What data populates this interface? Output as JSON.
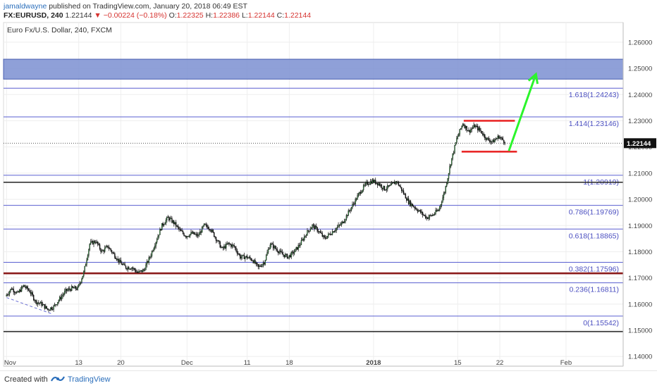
{
  "header": {
    "author": "jamaldwayne",
    "published_text": "published on TradingView.com, January 20, 2018 06:49 EST",
    "symbol": "FX:EURUSD, 240",
    "last": "1.22144",
    "change_arrow": "▼",
    "change": "−0.00224 (−0.18%)",
    "o_label": "O:",
    "o_value": "1.22325",
    "h_label": "H:",
    "h_value": "1.22386",
    "l_label": "L:",
    "l_value": "1.22144",
    "c_label": "C:",
    "c_value": "1.22144"
  },
  "footer": {
    "created_label": "Created with",
    "brand": "TradingView"
  },
  "chart_data": {
    "type": "candlestick",
    "title": "Euro Fx/U.S. Dollar, 240, FXCM",
    "y_ticks": [
      "1.26000",
      "1.25000",
      "1.24000",
      "1.23000",
      "1.22000",
      "1.21000",
      "1.20000",
      "1.19000",
      "1.18000",
      "1.17000",
      "1.16000",
      "1.15000",
      "1.14000"
    ],
    "y_tick_values": [
      1.26,
      1.25,
      1.24,
      1.23,
      1.22,
      1.21,
      1.2,
      1.19,
      1.18,
      1.17,
      1.16,
      1.15,
      1.14
    ],
    "ylim": [
      1.1363,
      1.2675
    ],
    "x_ticks": [
      "Nov",
      "13",
      "20",
      "Dec",
      "11",
      "18",
      "2018",
      "15",
      "22",
      "Feb"
    ],
    "x_tick_days": [
      0,
      12,
      19,
      30,
      40,
      47,
      61,
      75,
      82,
      93
    ],
    "xlim": [
      -0.5,
      102.5
    ],
    "last_price_label": "1.22144",
    "last_price": 1.22144,
    "fib_levels": [
      {
        "label": "1.618(1.24243)",
        "value": 1.24243
      },
      {
        "label": "1.414(1.23146)",
        "value": 1.23146
      },
      {
        "label": "1(1.20919)",
        "value": 1.20919
      },
      {
        "label": "0.786(1.19769)",
        "value": 1.19769
      },
      {
        "label": "0.618(1.18865)",
        "value": 1.18865
      },
      {
        "label": "0.382(1.17596)",
        "value": 1.17596
      },
      {
        "label": "0.236(1.16811)",
        "value": 1.16811
      },
      {
        "label": "0(1.15542)",
        "value": 1.15542
      }
    ],
    "black_lines": [
      1.2065,
      1.1495
    ],
    "red_band": [
      1.1714,
      1.1721
    ],
    "target_zone": [
      1.2459,
      1.2535
    ],
    "red_rect": {
      "top": 1.23,
      "bottom": 1.2182,
      "start_day": 76,
      "end_day": 84.5
    },
    "green_arrow": {
      "from_day": 83.5,
      "from_value": 1.2185,
      "to_day": 88,
      "to_value": 1.2478
    },
    "dashed_trend": {
      "from_day": 0,
      "from_value": 1.1625,
      "to_day": 7.5,
      "to_value": 1.1563
    },
    "price_path": [
      [
        0,
        1.163
      ],
      [
        1,
        1.166
      ],
      [
        2,
        1.164
      ],
      [
        3,
        1.167
      ],
      [
        4,
        1.165
      ],
      [
        5,
        1.161
      ],
      [
        6,
        1.16
      ],
      [
        7,
        1.158
      ],
      [
        8,
        1.159
      ],
      [
        9,
        1.162
      ],
      [
        10,
        1.165
      ],
      [
        11,
        1.166
      ],
      [
        12,
        1.166
      ],
      [
        13,
        1.172
      ],
      [
        14,
        1.183
      ],
      [
        15,
        1.184
      ],
      [
        16,
        1.18
      ],
      [
        17,
        1.182
      ],
      [
        18,
        1.179
      ],
      [
        19,
        1.176
      ],
      [
        20,
        1.174
      ],
      [
        21,
        1.174
      ],
      [
        22,
        1.172
      ],
      [
        23,
        1.173
      ],
      [
        24,
        1.178
      ],
      [
        25,
        1.184
      ],
      [
        26,
        1.19
      ],
      [
        27,
        1.193
      ],
      [
        28,
        1.191
      ],
      [
        29,
        1.188
      ],
      [
        30,
        1.186
      ],
      [
        31,
        1.187
      ],
      [
        32,
        1.186
      ],
      [
        33,
        1.19
      ],
      [
        34,
        1.189
      ],
      [
        35,
        1.185
      ],
      [
        36,
        1.181
      ],
      [
        37,
        1.183
      ],
      [
        38,
        1.182
      ],
      [
        39,
        1.178
      ],
      [
        40,
        1.178
      ],
      [
        41,
        1.177
      ],
      [
        42,
        1.174
      ],
      [
        43,
        1.176
      ],
      [
        44,
        1.183
      ],
      [
        45,
        1.181
      ],
      [
        46,
        1.179
      ],
      [
        47,
        1.178
      ],
      [
        48,
        1.18
      ],
      [
        49,
        1.183
      ],
      [
        50,
        1.187
      ],
      [
        51,
        1.19
      ],
      [
        52,
        1.188
      ],
      [
        53,
        1.185
      ],
      [
        54,
        1.187
      ],
      [
        55,
        1.189
      ],
      [
        56,
        1.191
      ],
      [
        57,
        1.195
      ],
      [
        58,
        1.199
      ],
      [
        59,
        1.203
      ],
      [
        60,
        1.206
      ],
      [
        61,
        1.207
      ],
      [
        62,
        1.206
      ],
      [
        63,
        1.204
      ],
      [
        64,
        1.205
      ],
      [
        65,
        1.207
      ],
      [
        66,
        1.203
      ],
      [
        67,
        1.199
      ],
      [
        68,
        1.197
      ],
      [
        69,
        1.195
      ],
      [
        70,
        1.193
      ],
      [
        71,
        1.194
      ],
      [
        72,
        1.196
      ],
      [
        73,
        1.203
      ],
      [
        74,
        1.214
      ],
      [
        75,
        1.223
      ],
      [
        76,
        1.229
      ],
      [
        77,
        1.226
      ],
      [
        78,
        1.228
      ],
      [
        79,
        1.226
      ],
      [
        80,
        1.223
      ],
      [
        81,
        1.222
      ],
      [
        82,
        1.224
      ],
      [
        83,
        1.222
      ]
    ]
  }
}
